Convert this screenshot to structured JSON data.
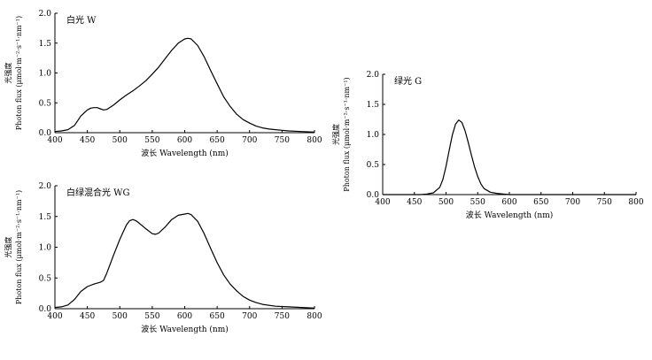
{
  "chart_data": [
    {
      "type": "line",
      "title": "白光 W",
      "xlabel": "波长 Wavelength (nm)",
      "ylabel_cn": "光强度",
      "ylabel": "Photon flux (μmol·m⁻²·s⁻¹·nm⁻¹)",
      "xlim": [
        400,
        800
      ],
      "ylim": [
        0,
        2.0
      ],
      "xticks": [
        "400",
        "450",
        "500",
        "550",
        "600",
        "650",
        "700",
        "750",
        "800"
      ],
      "yticks": [
        "0.0",
        "0.5",
        "1.0",
        "1.5",
        "2.0"
      ],
      "grid": false,
      "series": [
        {
          "x": [
            400,
            410,
            420,
            430,
            440,
            450,
            455,
            460,
            465,
            470,
            475,
            480,
            490,
            500,
            510,
            520,
            530,
            540,
            550,
            560,
            570,
            580,
            590,
            600,
            605,
            610,
            620,
            630,
            640,
            650,
            660,
            670,
            680,
            690,
            700,
            710,
            720,
            730,
            740,
            750,
            760,
            780,
            800
          ],
          "y": [
            0.02,
            0.03,
            0.05,
            0.12,
            0.28,
            0.38,
            0.41,
            0.42,
            0.42,
            0.4,
            0.38,
            0.39,
            0.46,
            0.55,
            0.63,
            0.7,
            0.78,
            0.87,
            0.98,
            1.1,
            1.24,
            1.38,
            1.5,
            1.57,
            1.58,
            1.57,
            1.46,
            1.27,
            1.04,
            0.82,
            0.6,
            0.44,
            0.31,
            0.22,
            0.16,
            0.11,
            0.08,
            0.06,
            0.05,
            0.04,
            0.03,
            0.02,
            0.01
          ]
        }
      ]
    },
    {
      "type": "line",
      "title": "白绿混合光 WG",
      "xlabel": "波长 Wavelength (nm)",
      "ylabel_cn": "光强度",
      "ylabel": "Photon flux (μmol·m⁻²·s⁻¹·nm⁻¹)",
      "xlim": [
        400,
        800
      ],
      "ylim": [
        0,
        2.0
      ],
      "xticks": [
        "400",
        "450",
        "500",
        "550",
        "600",
        "650",
        "700",
        "750",
        "800"
      ],
      "yticks": [
        "0.0",
        "0.5",
        "1.0",
        "1.5",
        "2.0"
      ],
      "grid": false,
      "series": [
        {
          "x": [
            400,
            410,
            420,
            430,
            440,
            450,
            460,
            470,
            475,
            480,
            490,
            500,
            510,
            515,
            520,
            525,
            530,
            540,
            550,
            555,
            560,
            570,
            580,
            590,
            600,
            605,
            610,
            620,
            630,
            640,
            650,
            660,
            670,
            680,
            690,
            700,
            710,
            720,
            740,
            760,
            780,
            800
          ],
          "y": [
            0.02,
            0.03,
            0.06,
            0.15,
            0.28,
            0.36,
            0.4,
            0.43,
            0.46,
            0.58,
            0.86,
            1.13,
            1.36,
            1.43,
            1.45,
            1.43,
            1.39,
            1.3,
            1.22,
            1.21,
            1.23,
            1.33,
            1.45,
            1.52,
            1.54,
            1.55,
            1.53,
            1.42,
            1.22,
            0.98,
            0.75,
            0.55,
            0.4,
            0.29,
            0.2,
            0.14,
            0.1,
            0.07,
            0.04,
            0.03,
            0.02,
            0.01
          ]
        }
      ]
    },
    {
      "type": "line",
      "title": "绿光 G",
      "xlabel": "波长 Wavelength (nm)",
      "ylabel_cn": "光强度",
      "ylabel": "Photon flux (μmol·m⁻²·s⁻¹·nm⁻¹)",
      "xlim": [
        400,
        800
      ],
      "ylim": [
        0,
        2.0
      ],
      "xticks": [
        "400",
        "450",
        "500",
        "550",
        "600",
        "650",
        "700",
        "750",
        "800"
      ],
      "yticks": [
        "0.0",
        "0.5",
        "1.0",
        "1.5",
        "2.0"
      ],
      "grid": false,
      "series": [
        {
          "x": [
            400,
            460,
            470,
            480,
            490,
            495,
            500,
            505,
            510,
            515,
            520,
            525,
            530,
            535,
            540,
            545,
            550,
            555,
            560,
            570,
            580,
            590,
            600,
            800
          ],
          "y": [
            0.0,
            0.0,
            0.01,
            0.03,
            0.12,
            0.25,
            0.47,
            0.74,
            0.99,
            1.17,
            1.24,
            1.2,
            1.06,
            0.87,
            0.66,
            0.46,
            0.3,
            0.18,
            0.1,
            0.04,
            0.02,
            0.01,
            0.0,
            0.0
          ]
        }
      ]
    }
  ]
}
